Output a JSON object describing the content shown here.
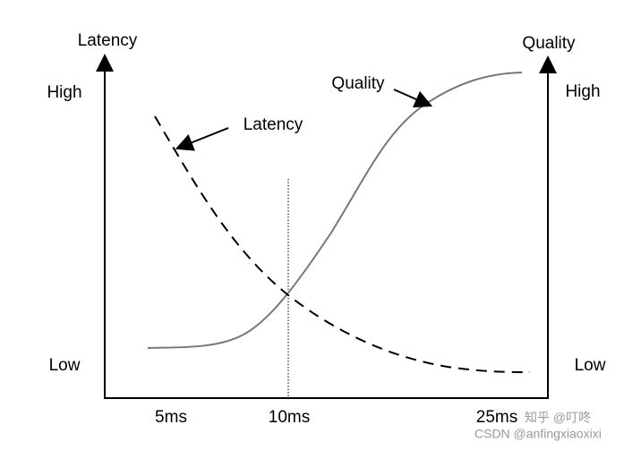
{
  "axes": {
    "left_title": "Latency",
    "right_title": "Quality",
    "left_high": "High",
    "left_low": "Low",
    "right_high": "High",
    "right_low": "Low",
    "x_labels": [
      "5ms",
      "10ms",
      "25ms"
    ]
  },
  "annotations": {
    "quality": "Quality",
    "latency": "Latency"
  },
  "watermarks": [
    "知乎 @叮咚",
    "CSDN @anfingxiaoxixi"
  ]
}
